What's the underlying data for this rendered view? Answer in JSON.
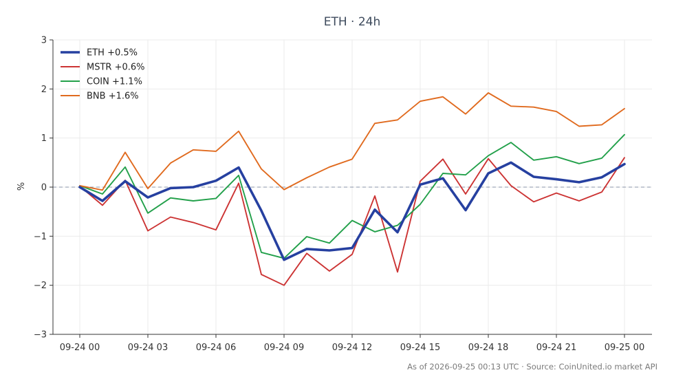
{
  "chart_data": {
    "type": "line",
    "title": "ETH · 24h",
    "ylabel": "%",
    "xlabel": "",
    "ylim": [
      -3,
      3
    ],
    "yticks": [
      -3,
      -2,
      -1,
      0,
      1,
      2,
      3
    ],
    "ytick_labels": [
      "−3",
      "−2",
      "−1",
      "0",
      "1",
      "2",
      "3"
    ],
    "xtick_labels": [
      "09-24 00",
      "09-24 03",
      "09-24 06",
      "09-24 09",
      "09-24 12",
      "09-24 15",
      "09-24 18",
      "09-24 21",
      "09-25 00"
    ],
    "xtick_hours": [
      0,
      3,
      6,
      9,
      12,
      15,
      18,
      21,
      24
    ],
    "x_hours": [
      0,
      1,
      2,
      3,
      4,
      5,
      6,
      7,
      8,
      9,
      10,
      11,
      12,
      13,
      14,
      15,
      16,
      17,
      18,
      19,
      20,
      21,
      22,
      23,
      24
    ],
    "grid": true,
    "zero_line": true,
    "legend_position": "top-left",
    "series": [
      {
        "name": "ETH +0.5%",
        "color": "#2640a0",
        "emphasis": true,
        "values": [
          0.0,
          -0.28,
          0.12,
          -0.21,
          -0.02,
          0.0,
          0.13,
          0.4,
          -0.48,
          -1.48,
          -1.26,
          -1.29,
          -1.24,
          -0.46,
          -0.92,
          0.05,
          0.18,
          -0.47,
          0.28,
          0.5,
          0.21,
          0.16,
          0.1,
          0.2,
          0.47
        ]
      },
      {
        "name": "MSTR +0.6%",
        "color": "#cc3333",
        "emphasis": false,
        "values": [
          0.02,
          -0.37,
          0.14,
          -0.89,
          -0.61,
          -0.72,
          -0.87,
          0.08,
          -1.78,
          -2.0,
          -1.35,
          -1.71,
          -1.37,
          -0.18,
          -1.73,
          0.12,
          0.57,
          -0.14,
          0.58,
          0.03,
          -0.3,
          -0.12,
          -0.28,
          -0.1,
          0.6
        ]
      },
      {
        "name": "COIN +1.1%",
        "color": "#22a04a",
        "emphasis": false,
        "values": [
          0.03,
          -0.14,
          0.41,
          -0.53,
          -0.22,
          -0.28,
          -0.23,
          0.24,
          -1.33,
          -1.45,
          -1.01,
          -1.14,
          -0.68,
          -0.91,
          -0.78,
          -0.35,
          0.28,
          0.25,
          0.64,
          0.91,
          0.55,
          0.62,
          0.48,
          0.59,
          1.07
        ]
      },
      {
        "name": "BNB +1.6%",
        "color": "#e06a1e",
        "emphasis": false,
        "values": [
          0.03,
          -0.06,
          0.71,
          -0.03,
          0.49,
          0.76,
          0.73,
          1.14,
          0.37,
          -0.05,
          0.19,
          0.41,
          0.57,
          1.3,
          1.37,
          1.75,
          1.84,
          1.49,
          1.92,
          1.65,
          1.63,
          1.54,
          1.24,
          1.27,
          1.6
        ]
      }
    ]
  },
  "footer": {
    "text": "As of 2026-09-25 00:13 UTC · Source: CoinUnited.io market API"
  }
}
